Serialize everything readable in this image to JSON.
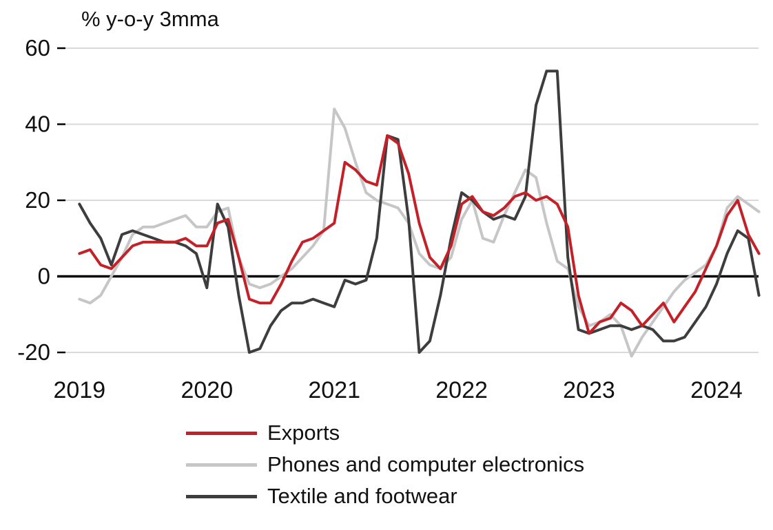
{
  "chart_data": {
    "type": "line",
    "title": "% y-o-y 3mma",
    "x_tick_labels": [
      "2019",
      "2020",
      "2021",
      "2022",
      "2023",
      "2024"
    ],
    "x_tick_values": [
      2019,
      2020,
      2021,
      2022,
      2023,
      2024
    ],
    "y_tick_labels": [
      "-20",
      "0",
      "20",
      "40",
      "60"
    ],
    "y_tick_values": [
      -20,
      0,
      20,
      40,
      60
    ],
    "xlim": [
      2018.89,
      2024.33
    ],
    "ylim": [
      -20,
      60
    ],
    "x_start_year": 2019,
    "x_frequency": "monthly",
    "grid": "horizontal",
    "zero_line": true,
    "legend_position": "bottom",
    "axis_color": "#000000",
    "grid_color": "#d9d9d9",
    "text_color": "#111111",
    "series": [
      {
        "name": "Exports",
        "color": "#c32127",
        "values": [
          6,
          7,
          3,
          2,
          5,
          8,
          9,
          9,
          9,
          9,
          10,
          8,
          8,
          14,
          15,
          5,
          -6,
          -7,
          -7,
          -2,
          4,
          9,
          10,
          12,
          14,
          30,
          28,
          25,
          24,
          37,
          35,
          27,
          14,
          5,
          2,
          8,
          19,
          21,
          17,
          16,
          18,
          21,
          22,
          20,
          21,
          19,
          13,
          -5,
          -15,
          -12,
          -11,
          -7,
          -9,
          -13,
          -10,
          -7,
          -12,
          -8,
          -4,
          2,
          8,
          16,
          20,
          11,
          6
        ]
      },
      {
        "name": "Phones and computer electronics",
        "color": "#c6c6c6",
        "values": [
          -6,
          -7,
          -5,
          0,
          5,
          11,
          13,
          13,
          14,
          15,
          16,
          13,
          13,
          17,
          18,
          5,
          -2,
          -3,
          -2,
          0,
          2,
          5,
          8,
          12,
          44,
          39,
          30,
          22,
          20,
          19,
          18,
          14,
          6,
          3,
          2,
          5,
          15,
          20,
          10,
          9,
          16,
          22,
          28,
          26,
          14,
          4,
          2,
          -8,
          -13,
          -12,
          -10,
          -13,
          -21,
          -16,
          -12,
          -8,
          -4,
          -1,
          1,
          3,
          8,
          18,
          21,
          19,
          17
        ]
      },
      {
        "name": "Textile and footwear",
        "color": "#3d3d3d",
        "values": [
          19,
          14,
          10,
          3,
          11,
          12,
          11,
          10,
          9,
          9,
          8,
          6,
          -3,
          19,
          13,
          -5,
          -20,
          -19,
          -13,
          -9,
          -7,
          -7,
          -6,
          -7,
          -8,
          -1,
          -2,
          -1,
          10,
          37,
          36,
          15,
          -20,
          -17,
          -5,
          10,
          22,
          20,
          17,
          15,
          16,
          15,
          21,
          45,
          54,
          54,
          5,
          -14,
          -15,
          -14,
          -13,
          -13,
          -14,
          -13,
          -14,
          -17,
          -17,
          -16,
          -12,
          -8,
          -2,
          6,
          12,
          10,
          -5
        ]
      }
    ]
  }
}
